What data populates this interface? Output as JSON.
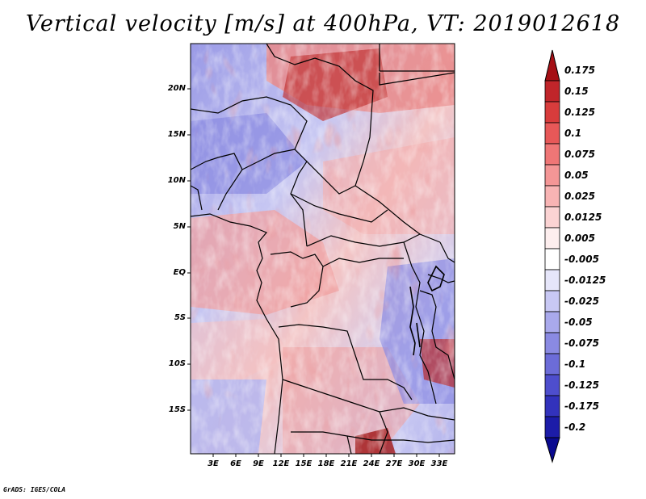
{
  "title": "Vertical velocity [m/s] at 400hPa, VT: 2019012618",
  "footer": "GrADS: IGES/COLA",
  "map": {
    "variable": "vertical velocity",
    "units": "m/s",
    "level": "400hPa",
    "valid_time": "2019012618",
    "lat_labels": [
      "20N",
      "15N",
      "10N",
      "5N",
      "EQ",
      "5S",
      "10S",
      "15S"
    ],
    "lon_labels": [
      "3E",
      "6E",
      "9E",
      "12E",
      "15E",
      "18E",
      "21E",
      "24E",
      "27E",
      "30E",
      "33E"
    ]
  },
  "colorbar": {
    "labels": [
      "0.175",
      "0.15",
      "0.125",
      "0.1",
      "0.075",
      "0.05",
      "0.025",
      "0.0125",
      "0.005",
      "-0.005",
      "-0.0125",
      "-0.025",
      "-0.05",
      "-0.075",
      "-0.1",
      "-0.125",
      "-0.175",
      "-0.2"
    ],
    "colors": [
      "#a50f15",
      "#c0252a",
      "#d83c3c",
      "#e75858",
      "#ef7676",
      "#f49696",
      "#f8b4b4",
      "#fbd3d3",
      "#fdeeee",
      "#ffffff",
      "#e6e6fa",
      "#c8c8f4",
      "#a9a9ec",
      "#8a8ae2",
      "#6c6cd8",
      "#4e4ecd",
      "#3232bc",
      "#1c1ca8",
      "#0a0a90"
    ]
  }
}
